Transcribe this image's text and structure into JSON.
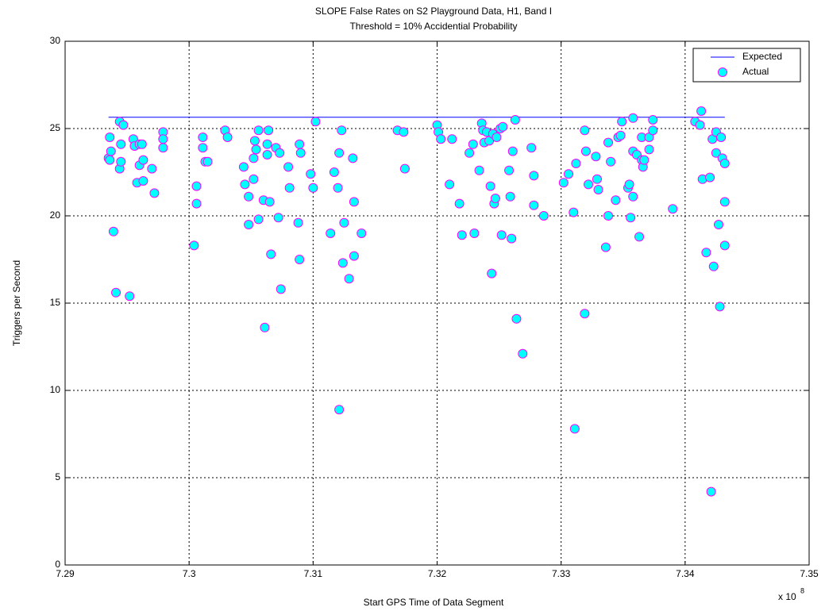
{
  "chart_data": {
    "type": "scatter",
    "title": "SLOPE False Rates on S2 Playground Data, H1, Band I",
    "subtitle": "Threshold = 10% Accidential Probability",
    "x_label": "Start GPS Time of Data Segment",
    "y_label": "Triggers per Second",
    "x_multiplier": {
      "base": "x 10",
      "power": 8
    },
    "xlim": [
      7.29,
      7.35
    ],
    "ylim": [
      0,
      30
    ],
    "xticks": [
      7.29,
      7.3,
      7.31,
      7.32,
      7.33,
      7.34,
      7.35
    ],
    "yticks": [
      0,
      5,
      10,
      15,
      20,
      25,
      30
    ],
    "grid": true,
    "legend_position": "upper-right",
    "series": [
      {
        "name": "Expected",
        "mode": "line",
        "color": "#0000ff",
        "x": [
          7.2935,
          7.3432
        ],
        "values": [
          25.65,
          25.65
        ]
      },
      {
        "name": "Actual",
        "mode": "markers",
        "color": "#00ffff",
        "edgecolor": "#ff00ff",
        "x": [
          7.2936,
          7.2935,
          7.2936,
          7.2937,
          7.2939,
          7.2941,
          7.2944,
          7.2945,
          7.2944,
          7.2945,
          7.2947,
          7.2952,
          7.2955,
          7.2956,
          7.2958,
          7.296,
          7.296,
          7.2963,
          7.2962,
          7.2963,
          7.297,
          7.2972,
          7.2979,
          7.2979,
          7.2979,
          7.3004,
          7.3006,
          7.3006,
          7.3011,
          7.3011,
          7.3013,
          7.3015,
          7.3029,
          7.3031,
          7.3044,
          7.3045,
          7.3048,
          7.3048,
          7.3052,
          7.3052,
          7.3053,
          7.3054,
          7.3056,
          7.3056,
          7.306,
          7.3061,
          7.3063,
          7.3063,
          7.3064,
          7.3065,
          7.3066,
          7.307,
          7.3072,
          7.3073,
          7.3074,
          7.308,
          7.3081,
          7.3088,
          7.3089,
          7.309,
          7.3089,
          7.3098,
          7.31,
          7.3102,
          7.3114,
          7.3117,
          7.312,
          7.3121,
          7.3121,
          7.3123,
          7.3124,
          7.3125,
          7.3129,
          7.3132,
          7.3133,
          7.3133,
          7.3139,
          7.3168,
          7.3173,
          7.3174,
          7.32,
          7.3201,
          7.3203,
          7.3212,
          7.321,
          7.3218,
          7.322,
          7.3226,
          7.3229,
          7.323,
          7.3234,
          7.3236,
          7.3237,
          7.3238,
          7.324,
          7.3242,
          7.3243,
          7.3244,
          7.3245,
          7.3246,
          7.3247,
          7.3248,
          7.3251,
          7.3252,
          7.3253,
          7.3258,
          7.3259,
          7.326,
          7.3261,
          7.3263,
          7.3264,
          7.3269,
          7.3276,
          7.3278,
          7.3278,
          7.3286,
          7.3302,
          7.3306,
          7.331,
          7.3312,
          7.3311,
          7.3319,
          7.3319,
          7.332,
          7.3322,
          7.3328,
          7.3329,
          7.333,
          7.3336,
          7.3338,
          7.3338,
          7.334,
          7.3344,
          7.3346,
          7.3348,
          7.3349,
          7.3354,
          7.3355,
          7.3356,
          7.3358,
          7.3358,
          7.3358,
          7.3361,
          7.3363,
          7.3365,
          7.3365,
          7.3366,
          7.3367,
          7.3371,
          7.3371,
          7.3374,
          7.3374,
          7.339,
          7.3408,
          7.3412,
          7.3413,
          7.3414,
          7.3417,
          7.342,
          7.3421,
          7.3422,
          7.3423,
          7.3425,
          7.3425,
          7.3427,
          7.3428,
          7.3429,
          7.343,
          7.3432,
          7.3432,
          7.3432
        ],
        "values": [
          24.5,
          23.3,
          23.2,
          23.7,
          19.1,
          15.6,
          25.4,
          24.1,
          22.7,
          23.1,
          25.2,
          15.4,
          24.4,
          24.0,
          21.9,
          24.1,
          22.9,
          22.0,
          24.1,
          23.2,
          22.7,
          21.3,
          24.8,
          24.4,
          23.9,
          18.3,
          20.7,
          21.7,
          23.9,
          24.5,
          23.1,
          23.1,
          24.9,
          24.5,
          22.8,
          21.8,
          21.1,
          19.5,
          22.1,
          23.3,
          24.3,
          23.8,
          24.9,
          19.8,
          20.9,
          13.6,
          24.1,
          23.5,
          24.9,
          20.8,
          17.8,
          23.9,
          19.9,
          23.6,
          15.8,
          22.8,
          21.6,
          19.6,
          24.1,
          23.6,
          17.5,
          22.4,
          21.6,
          25.4,
          19.0,
          22.5,
          21.6,
          23.6,
          8.9,
          24.9,
          17.3,
          19.6,
          16.4,
          23.3,
          17.7,
          20.8,
          19.0,
          24.9,
          24.8,
          22.7,
          25.2,
          24.8,
          24.4,
          24.4,
          21.8,
          20.7,
          18.9,
          23.6,
          24.1,
          19.0,
          22.6,
          25.3,
          24.9,
          24.2,
          24.8,
          24.3,
          21.7,
          16.7,
          24.7,
          20.7,
          21.0,
          24.5,
          25.0,
          18.9,
          25.1,
          22.6,
          21.1,
          18.7,
          23.7,
          25.5,
          14.1,
          12.1,
          23.9,
          22.3,
          20.6,
          20.0,
          21.9,
          22.4,
          20.2,
          23.0,
          7.8,
          24.9,
          14.4,
          23.7,
          21.8,
          23.4,
          22.1,
          21.5,
          18.2,
          24.2,
          20.0,
          23.1,
          20.9,
          24.5,
          24.6,
          25.4,
          21.6,
          21.8,
          19.9,
          25.6,
          21.1,
          23.7,
          23.5,
          18.8,
          24.5,
          23.2,
          22.8,
          23.2,
          23.8,
          24.5,
          25.5,
          24.9,
          20.4,
          25.4,
          25.2,
          26.0,
          22.1,
          17.9,
          22.2,
          4.2,
          24.4,
          17.1,
          24.8,
          23.6,
          19.5,
          14.8,
          24.5,
          23.3,
          20.8,
          18.3,
          23.0
        ]
      }
    ]
  }
}
